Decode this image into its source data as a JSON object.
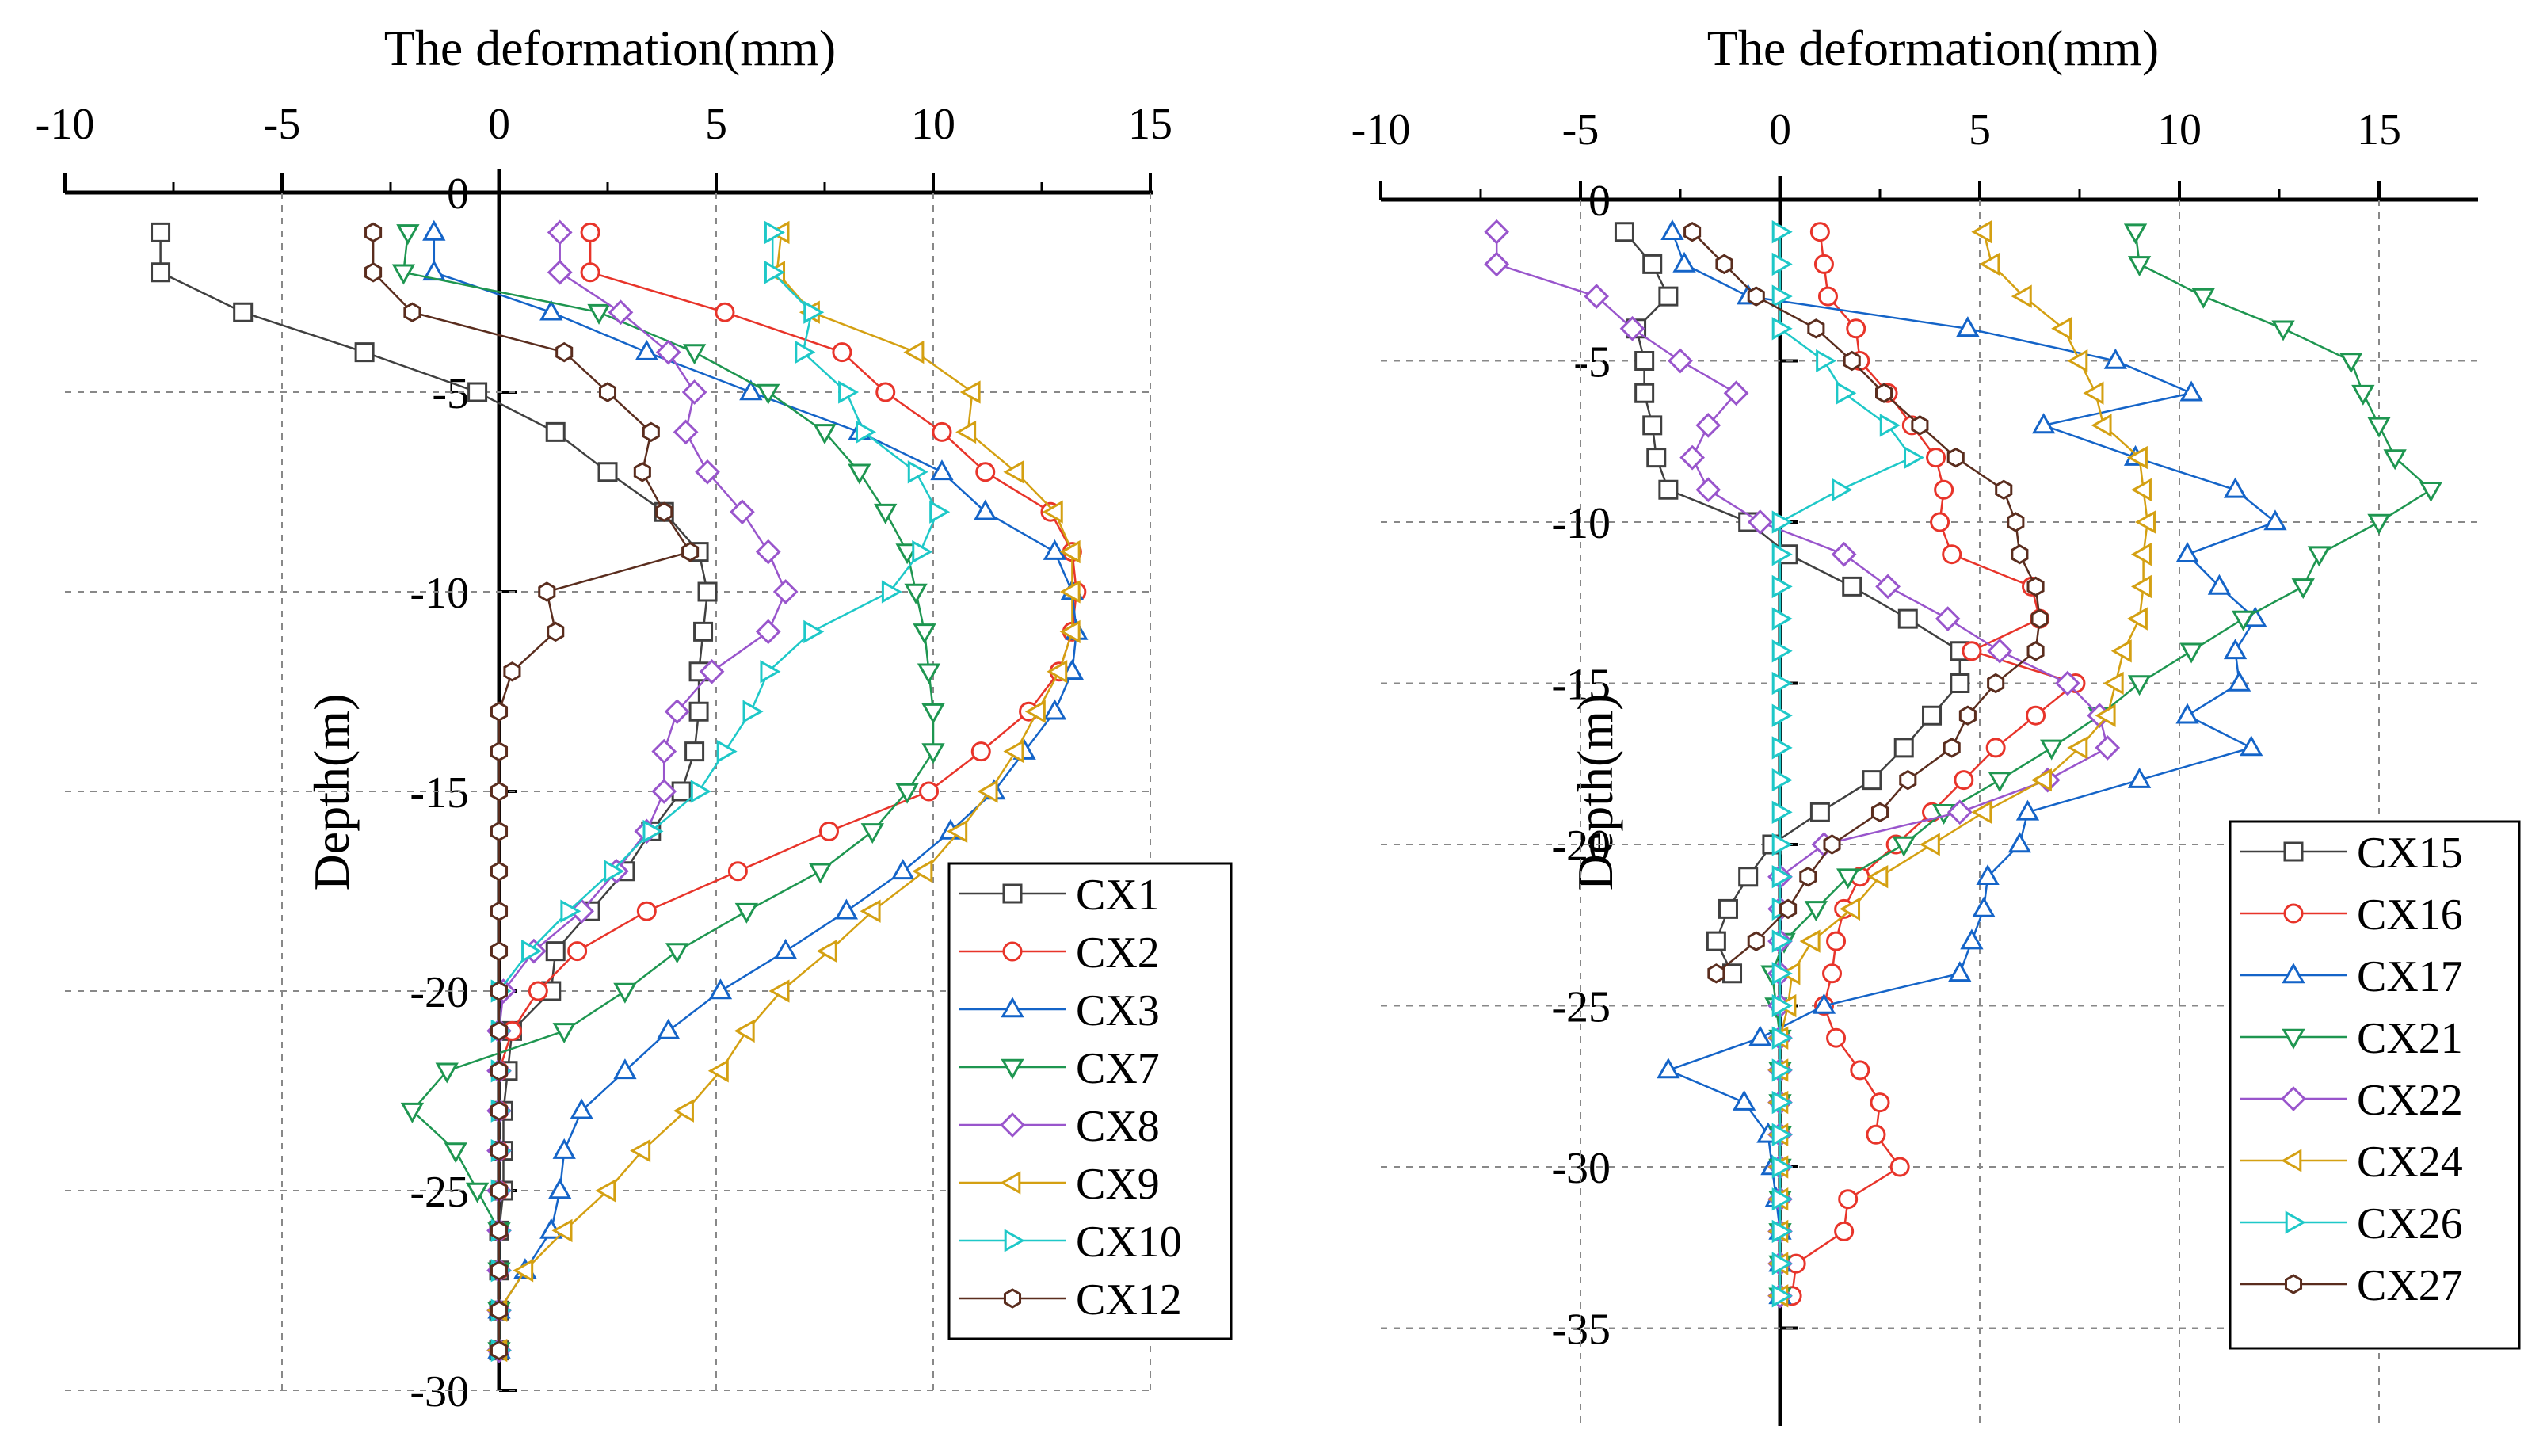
{
  "chart_data": [
    {
      "type": "line",
      "title": "",
      "xlabel": "The deformation(mm)",
      "ylabel": "Depth(m)",
      "xlim": [
        -10,
        15
      ],
      "ylim": [
        -30,
        0
      ],
      "xticks": [
        "-10",
        "-5",
        "0",
        "5",
        "10",
        "15"
      ],
      "yticks": [
        "0",
        "-5",
        "-10",
        "-15",
        "-20",
        "-25",
        "-30"
      ],
      "grid": true,
      "legend_position": "bottom-right",
      "series": [
        {
          "name": "CX1",
          "color": "#404040",
          "marker": "square",
          "x": [
            -7.8,
            -7.8,
            -5.9,
            -3.1,
            -0.5,
            1.3,
            2.5,
            3.8,
            4.6,
            4.8,
            4.7,
            4.6,
            4.6,
            4.5,
            4.2,
            3.5,
            2.9,
            2.1,
            1.3,
            1.2,
            0.3,
            0.2,
            0.1,
            0.1,
            0.1,
            0,
            0,
            0,
            0
          ],
          "y": [
            -1,
            -2,
            -3,
            -4,
            -5,
            -6,
            -7,
            -8,
            -9,
            -10,
            -11,
            -12,
            -13,
            -14,
            -15,
            -16,
            -17,
            -18,
            -19,
            -20,
            -21,
            -22,
            -23,
            -24,
            -25,
            -26,
            -27,
            -28,
            -29
          ]
        },
        {
          "name": "CX2",
          "color": "#e8342a",
          "marker": "circle",
          "x": [
            2.1,
            2.1,
            5.2,
            7.9,
            8.9,
            10.2,
            11.2,
            12.7,
            13.2,
            13.3,
            13.2,
            12.9,
            12.2,
            11.1,
            9.9,
            7.6,
            5.5,
            3.4,
            1.8,
            0.9,
            0.3,
            0,
            0,
            0,
            0,
            0,
            0,
            0,
            0
          ],
          "y": [
            -1,
            -2,
            -3,
            -4,
            -5,
            -6,
            -7,
            -8,
            -9,
            -10,
            -11,
            -12,
            -13,
            -14,
            -15,
            -16,
            -17,
            -18,
            -19,
            -20,
            -21,
            -22,
            -23,
            -24,
            -25,
            -26,
            -27,
            -28,
            -29
          ]
        },
        {
          "name": "CX3",
          "color": "#1464c8",
          "marker": "triangle-up",
          "x": [
            -1.5,
            -1.5,
            1.2,
            3.4,
            5.8,
            8.3,
            10.2,
            11.2,
            12.8,
            13.2,
            13.3,
            13.2,
            12.8,
            12.1,
            11.4,
            10.4,
            9.3,
            8,
            6.6,
            5.1,
            3.9,
            2.9,
            1.9,
            1.5,
            1.4,
            1.2,
            0.6,
            0,
            0
          ],
          "y": [
            -1,
            -2,
            -3,
            -4,
            -5,
            -6,
            -7,
            -8,
            -9,
            -10,
            -11,
            -12,
            -13,
            -14,
            -15,
            -16,
            -17,
            -18,
            -19,
            -20,
            -21,
            -22,
            -23,
            -24,
            -25,
            -26,
            -27,
            -28,
            -29
          ]
        },
        {
          "name": "CX7",
          "color": "#1e9650",
          "marker": "triangle-down",
          "x": [
            -2.1,
            -2.2,
            2.3,
            4.5,
            6.2,
            7.5,
            8.3,
            8.9,
            9.4,
            9.6,
            9.8,
            9.9,
            10.0,
            10.0,
            9.4,
            8.6,
            7.4,
            5.7,
            4.1,
            2.9,
            1.5,
            -1.2,
            -2.0,
            -1.0,
            -0.5,
            0,
            0,
            0,
            0
          ],
          "y": [
            -1,
            -2,
            -3,
            -4,
            -5,
            -6,
            -7,
            -8,
            -9,
            -10,
            -11,
            -12,
            -13,
            -14,
            -15,
            -16,
            -17,
            -18,
            -19,
            -20,
            -21,
            -22,
            -23,
            -24,
            -25,
            -26,
            -27,
            -28,
            -29
          ]
        },
        {
          "name": "CX8",
          "color": "#9955cc",
          "marker": "diamond",
          "x": [
            1.4,
            1.4,
            2.8,
            3.9,
            4.5,
            4.3,
            4.8,
            5.6,
            6.2,
            6.6,
            6.2,
            4.9,
            4.1,
            3.8,
            3.8,
            3.4,
            2.7,
            1.9,
            0.8,
            0.1,
            0,
            0,
            0,
            0,
            0,
            0,
            0,
            0,
            0
          ],
          "y": [
            -1,
            -2,
            -3,
            -4,
            -5,
            -6,
            -7,
            -8,
            -9,
            -10,
            -11,
            -12,
            -13,
            -14,
            -15,
            -16,
            -17,
            -18,
            -19,
            -20,
            -21,
            -22,
            -23,
            -24,
            -25,
            -26,
            -27,
            -28,
            -29
          ]
        },
        {
          "name": "CX9",
          "color": "#d4a012",
          "marker": "triangle-left",
          "x": [
            6.5,
            6.4,
            7.2,
            9.6,
            10.9,
            10.8,
            11.9,
            12.8,
            13.2,
            13.2,
            13.2,
            12.9,
            12.4,
            11.9,
            11.3,
            10.6,
            9.8,
            8.6,
            7.6,
            6.5,
            5.7,
            5.1,
            4.3,
            3.3,
            2.5,
            1.5,
            0.6,
            0,
            0
          ],
          "y": [
            -1,
            -2,
            -3,
            -4,
            -5,
            -6,
            -7,
            -8,
            -9,
            -10,
            -11,
            -12,
            -13,
            -14,
            -15,
            -16,
            -17,
            -18,
            -19,
            -20,
            -21,
            -22,
            -23,
            -24,
            -25,
            -26,
            -27,
            -28,
            -29
          ]
        },
        {
          "name": "CX10",
          "color": "#1ec8c8",
          "marker": "triangle-right",
          "x": [
            6.3,
            6.3,
            7.2,
            7.0,
            8.0,
            8.4,
            9.6,
            10.1,
            9.7,
            9.0,
            7.2,
            6.2,
            5.8,
            5.2,
            4.6,
            3.5,
            2.6,
            1.6,
            0.7,
            0,
            0,
            0,
            0,
            0,
            0,
            0,
            0,
            0,
            0
          ],
          "y": [
            -1,
            -2,
            -3,
            -4,
            -5,
            -6,
            -7,
            -8,
            -9,
            -10,
            -11,
            -12,
            -13,
            -14,
            -15,
            -16,
            -17,
            -18,
            -19,
            -20,
            -21,
            -22,
            -23,
            -24,
            -25,
            -26,
            -27,
            -28,
            -29
          ]
        },
        {
          "name": "CX12",
          "color": "#5a2d1e",
          "marker": "hexagon",
          "x": [
            -2.9,
            -2.9,
            -2.0,
            1.5,
            2.5,
            3.5,
            3.3,
            3.8,
            4.4,
            1.1,
            1.3,
            0.3,
            0,
            0,
            0,
            0,
            0,
            0,
            0,
            0,
            0,
            0,
            0,
            0,
            0,
            0,
            0,
            0,
            0
          ],
          "y": [
            -1,
            -2,
            -3,
            -4,
            -5,
            -6,
            -7,
            -8,
            -9,
            -10,
            -11,
            -12,
            -13,
            -14,
            -15,
            -16,
            -17,
            -18,
            -19,
            -20,
            -21,
            -22,
            -23,
            -24,
            -25,
            -26,
            -27,
            -28,
            -29
          ]
        }
      ]
    },
    {
      "type": "line",
      "title": "",
      "xlabel": "The deformation(mm)",
      "ylabel": "Depth(m)",
      "xlim": [
        -10,
        17.5
      ],
      "ylim": [
        -37,
        0
      ],
      "xticks": [
        "-10",
        "-5",
        "0",
        "5",
        "10",
        "15"
      ],
      "yticks": [
        "0",
        "-5",
        "-10",
        "-15",
        "-20",
        "-25",
        "-30",
        "-35"
      ],
      "grid": true,
      "legend_position": "bottom-right",
      "series": [
        {
          "name": "CX15",
          "color": "#404040",
          "marker": "square",
          "x": [
            -3.9,
            -3.2,
            -2.8,
            -3.6,
            -3.4,
            -3.4,
            -3.2,
            -3.1,
            -2.8,
            -0.8,
            0.2,
            1.8,
            3.2,
            4.5,
            4.5,
            3.8,
            3.1,
            2.3,
            1.0,
            -0.2,
            -0.8,
            -1.3,
            -1.6,
            -1.2
          ],
          "y": [
            -1,
            -2,
            -3,
            -4,
            -5,
            -6,
            -7,
            -8,
            -9,
            -10,
            -11,
            -12,
            -13,
            -14,
            -15,
            -16,
            -17,
            -18,
            -19,
            -20,
            -21,
            -22,
            -23,
            -24
          ]
        },
        {
          "name": "CX16",
          "color": "#e8342a",
          "marker": "circle",
          "x": [
            1.0,
            1.1,
            1.2,
            1.9,
            2.0,
            2.7,
            3.3,
            3.9,
            4.1,
            4.0,
            4.3,
            6.3,
            6.5,
            4.8,
            7.4,
            6.4,
            5.4,
            4.6,
            3.8,
            2.9,
            2.0,
            1.6,
            1.4,
            1.3,
            1.1,
            1.4,
            2.0,
            2.5,
            2.4,
            3.0,
            1.7,
            1.6,
            0.4,
            0.3
          ],
          "y": [
            -1,
            -2,
            -3,
            -4,
            -5,
            -6,
            -7,
            -8,
            -9,
            -10,
            -11,
            -12,
            -13,
            -14,
            -15,
            -16,
            -17,
            -18,
            -19,
            -20,
            -21,
            -22,
            -23,
            -24,
            -25,
            -26,
            -27,
            -28,
            -29,
            -30,
            -31,
            -32,
            -33,
            -34
          ]
        },
        {
          "name": "CX17",
          "color": "#1464c8",
          "marker": "triangle-up",
          "x": [
            -2.7,
            -2.4,
            -0.8,
            4.7,
            8.4,
            10.3,
            6.6,
            8.9,
            11.4,
            12.4,
            10.2,
            11.0,
            11.9,
            11.4,
            11.5,
            10.2,
            11.8,
            9.0,
            6.2,
            6.0,
            5.2,
            5.1,
            4.8,
            4.5,
            1.1,
            -0.5,
            -2.8,
            -0.9,
            -0.3,
            -0.2,
            -0.1,
            0,
            0,
            0
          ],
          "y": [
            -1,
            -2,
            -3,
            -4,
            -5,
            -6,
            -7,
            -8,
            -9,
            -10,
            -11,
            -12,
            -13,
            -14,
            -15,
            -16,
            -17,
            -18,
            -19,
            -20,
            -21,
            -22,
            -23,
            -24,
            -25,
            -26,
            -27,
            -28,
            -29,
            -30,
            -31,
            -32,
            -33,
            -34
          ]
        },
        {
          "name": "CX21",
          "color": "#1e9650",
          "marker": "triangle-down",
          "x": [
            8.9,
            9.0,
            10.6,
            12.6,
            14.3,
            14.6,
            15.0,
            15.4,
            16.3,
            15.0,
            13.5,
            13.1,
            11.6,
            10.3,
            9.0,
            8.0,
            6.8,
            5.5,
            4.1,
            3.1,
            1.7,
            0.9,
            0.1,
            -0.2,
            -0.1,
            0,
            0,
            0,
            0,
            0,
            0,
            0,
            0,
            0
          ],
          "y": [
            -1,
            -2,
            -3,
            -4,
            -5,
            -6,
            -7,
            -8,
            -9,
            -10,
            -11,
            -12,
            -13,
            -14,
            -15,
            -16,
            -17,
            -18,
            -19,
            -20,
            -21,
            -22,
            -23,
            -24,
            -25,
            -26,
            -27,
            -28,
            -29,
            -30,
            -31,
            -32,
            -33,
            -34
          ]
        },
        {
          "name": "CX22",
          "color": "#9955cc",
          "marker": "diamond",
          "x": [
            -7.1,
            -7.1,
            -4.6,
            -3.7,
            -2.5,
            -1.1,
            -1.8,
            -2.2,
            -1.8,
            -0.5,
            1.6,
            2.7,
            4.2,
            5.5,
            7.2,
            8.0,
            8.2,
            6.7,
            4.5,
            1.1,
            0,
            0,
            0,
            0,
            0,
            0,
            0,
            0,
            0,
            0,
            0,
            0,
            0,
            0
          ],
          "y": [
            -1,
            -2,
            -3,
            -4,
            -5,
            -6,
            -7,
            -8,
            -9,
            -10,
            -11,
            -12,
            -13,
            -14,
            -15,
            -16,
            -17,
            -18,
            -19,
            -20,
            -21,
            -22,
            -23,
            -24,
            -25,
            -26,
            -27,
            -28,
            -29,
            -30,
            -31,
            -32,
            -33,
            -34
          ]
        },
        {
          "name": "CX24",
          "color": "#d4a012",
          "marker": "triangle-left",
          "x": [
            5.1,
            5.3,
            6.1,
            7.1,
            7.5,
            7.9,
            8.1,
            9.0,
            9.1,
            9.2,
            9.1,
            9.1,
            9.0,
            8.6,
            8.4,
            8.2,
            7.5,
            6.6,
            5.1,
            3.8,
            2.5,
            1.8,
            0.8,
            0.3,
            0.2,
            0,
            0,
            0,
            0,
            0,
            0,
            0,
            0,
            0
          ],
          "y": [
            -1,
            -2,
            -3,
            -4,
            -5,
            -6,
            -7,
            -8,
            -9,
            -10,
            -11,
            -12,
            -13,
            -14,
            -15,
            -16,
            -17,
            -18,
            -19,
            -20,
            -21,
            -22,
            -23,
            -24,
            -25,
            -26,
            -27,
            -28,
            -29,
            -30,
            -31,
            -32,
            -33,
            -34
          ]
        },
        {
          "name": "CX26",
          "color": "#1ec8c8",
          "marker": "triangle-right",
          "x": [
            0,
            0,
            0,
            0,
            1.1,
            1.6,
            2.7,
            3.3,
            1.5,
            0,
            0,
            0,
            0,
            0,
            0,
            0,
            0,
            0,
            0,
            0,
            0,
            0,
            0,
            0,
            0,
            0,
            0,
            0,
            0,
            0,
            0,
            0,
            0,
            0
          ],
          "y": [
            -1,
            -2,
            -3,
            -4,
            -5,
            -6,
            -7,
            -8,
            -9,
            -10,
            -11,
            -12,
            -13,
            -14,
            -15,
            -16,
            -17,
            -18,
            -19,
            -20,
            -21,
            -22,
            -23,
            -24,
            -25,
            -26,
            -27,
            -28,
            -29,
            -30,
            -31,
            -32,
            -33,
            -34
          ]
        },
        {
          "name": "CX27",
          "color": "#5a2d1e",
          "marker": "hexagon",
          "x": [
            -2.2,
            -1.4,
            -0.6,
            0.9,
            1.8,
            2.6,
            3.5,
            4.4,
            5.6,
            5.9,
            6.0,
            6.4,
            6.5,
            6.4,
            5.4,
            4.7,
            4.3,
            3.2,
            2.5,
            1.3,
            0.7,
            0.2,
            -0.6,
            -1.6
          ],
          "y": [
            -1,
            -2,
            -3,
            -4,
            -5,
            -6,
            -7,
            -8,
            -9,
            -10,
            -11,
            -12,
            -13,
            -14,
            -15,
            -16,
            -17,
            -18,
            -19,
            -20,
            -21,
            -22,
            -23,
            -24
          ]
        }
      ]
    }
  ]
}
